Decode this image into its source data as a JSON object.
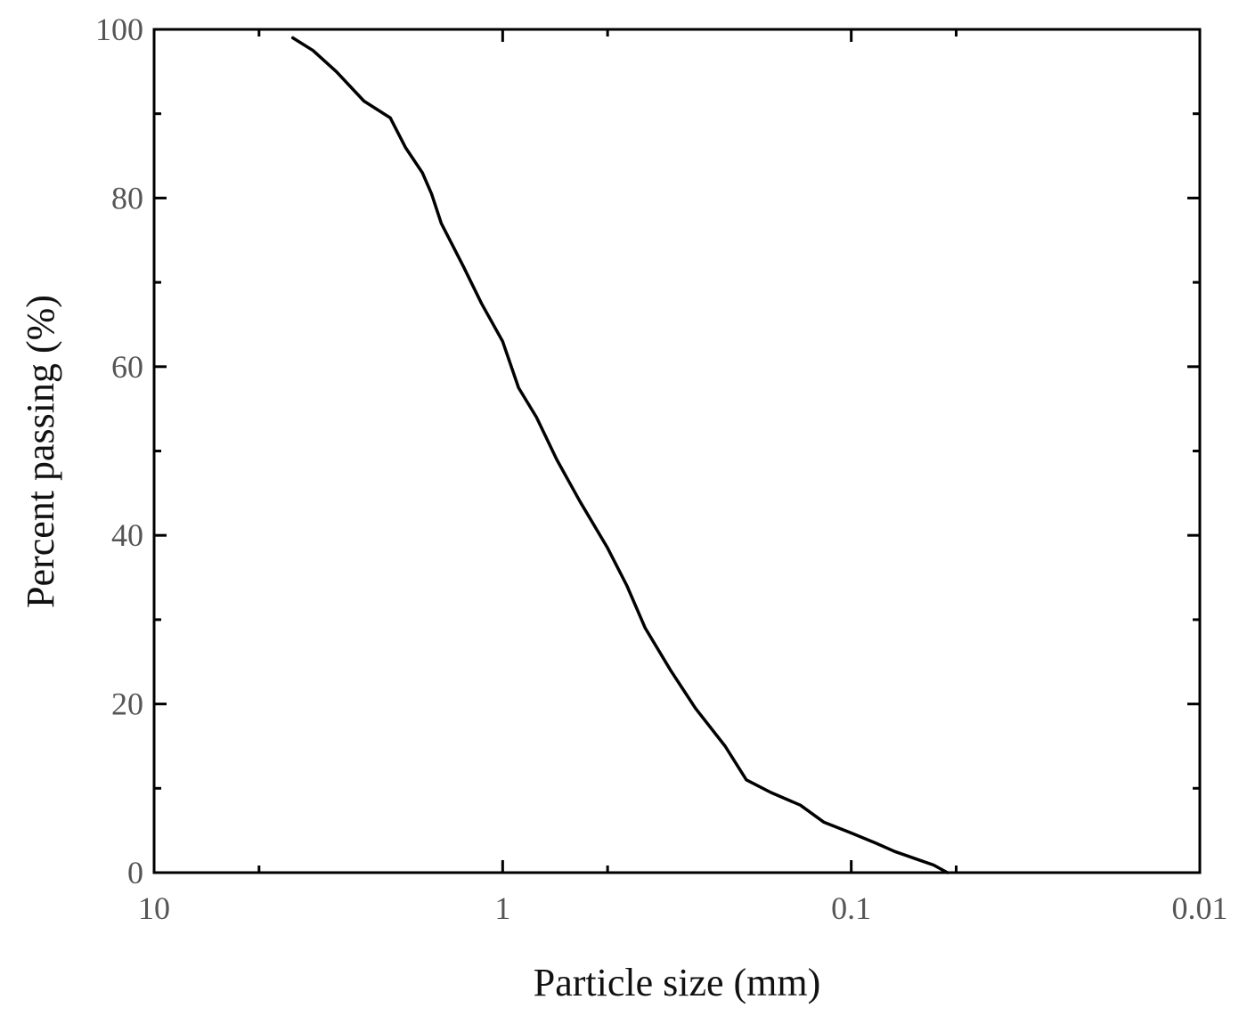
{
  "chart_data": {
    "type": "line",
    "title": "",
    "xlabel": "Particle size (mm)",
    "ylabel": "Percent passing (%)",
    "x_scale": "log",
    "x_reversed": true,
    "xlim": [
      10,
      0.01
    ],
    "ylim": [
      0,
      100
    ],
    "grid": false,
    "x_ticks": [
      {
        "value": 10,
        "label": "10"
      },
      {
        "value": 1,
        "label": "1"
      },
      {
        "value": 0.1,
        "label": "0.1"
      },
      {
        "value": 0.01,
        "label": "0.01"
      }
    ],
    "x_minor_ticks": [
      5,
      0.5,
      0.05
    ],
    "y_ticks": [
      {
        "value": 0,
        "label": "0"
      },
      {
        "value": 20,
        "label": "20"
      },
      {
        "value": 40,
        "label": "40"
      },
      {
        "value": 60,
        "label": "60"
      },
      {
        "value": 80,
        "label": "80"
      },
      {
        "value": 100,
        "label": "100"
      }
    ],
    "y_minor_ticks": [
      10,
      30,
      50,
      70,
      90
    ],
    "series": [
      {
        "color": "#000000",
        "points": [
          {
            "x": 4.0,
            "y": 99
          },
          {
            "x": 3.5,
            "y": 97.5
          },
          {
            "x": 3.0,
            "y": 95
          },
          {
            "x": 2.5,
            "y": 91.5
          },
          {
            "x": 2.1,
            "y": 89.5
          },
          {
            "x": 1.9,
            "y": 86
          },
          {
            "x": 1.7,
            "y": 83
          },
          {
            "x": 1.6,
            "y": 80.5
          },
          {
            "x": 1.5,
            "y": 77
          },
          {
            "x": 1.3,
            "y": 72
          },
          {
            "x": 1.15,
            "y": 67.5
          },
          {
            "x": 1.0,
            "y": 63
          },
          {
            "x": 0.9,
            "y": 57.5
          },
          {
            "x": 0.8,
            "y": 54
          },
          {
            "x": 0.7,
            "y": 49
          },
          {
            "x": 0.6,
            "y": 44
          },
          {
            "x": 0.5,
            "y": 38.5
          },
          {
            "x": 0.44,
            "y": 34
          },
          {
            "x": 0.39,
            "y": 29
          },
          {
            "x": 0.33,
            "y": 24
          },
          {
            "x": 0.28,
            "y": 19.5
          },
          {
            "x": 0.23,
            "y": 15
          },
          {
            "x": 0.2,
            "y": 11
          },
          {
            "x": 0.17,
            "y": 9.5
          },
          {
            "x": 0.14,
            "y": 8
          },
          {
            "x": 0.12,
            "y": 6
          },
          {
            "x": 0.1,
            "y": 4.7
          },
          {
            "x": 0.085,
            "y": 3.5
          },
          {
            "x": 0.075,
            "y": 2.5
          },
          {
            "x": 0.065,
            "y": 1.6
          },
          {
            "x": 0.058,
            "y": 0.9
          },
          {
            "x": 0.053,
            "y": 0
          }
        ]
      }
    ]
  }
}
